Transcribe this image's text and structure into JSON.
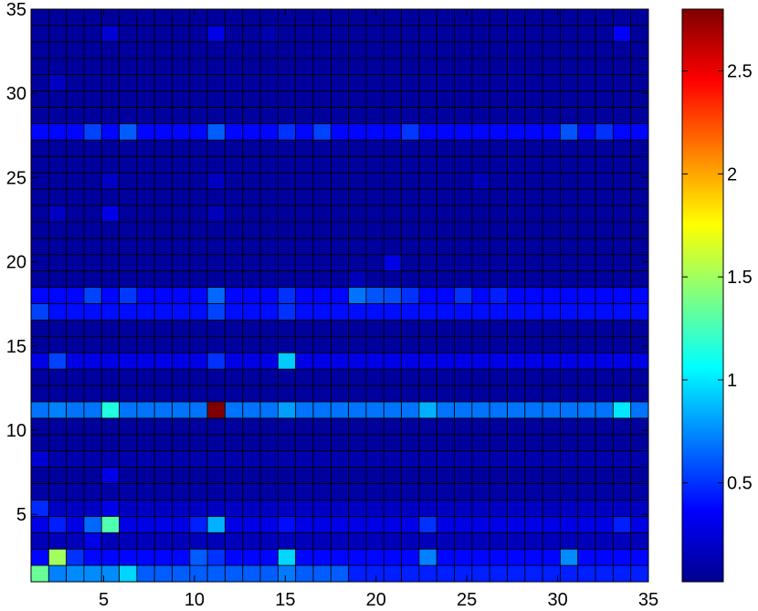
{
  "chart_data": {
    "type": "heatmap",
    "title": "",
    "xlabel": "",
    "ylabel": "",
    "xlim": [
      1,
      35
    ],
    "ylim": [
      1,
      35
    ],
    "x_ticks": [
      5,
      10,
      15,
      20,
      25,
      30,
      35
    ],
    "y_ticks": [
      5,
      10,
      15,
      20,
      25,
      30,
      35
    ],
    "x_tick_labels": [
      "5",
      "10",
      "15",
      "20",
      "25",
      "30",
      "35"
    ],
    "y_tick_labels": [
      "5",
      "10",
      "15",
      "20",
      "25",
      "30",
      "35"
    ],
    "grid": false,
    "colormap": "jet",
    "colorbar": {
      "placement": "right",
      "range": [
        0.02,
        2.8
      ],
      "ticks": [
        0.5,
        1,
        1.5,
        2,
        2.5
      ],
      "tick_labels": [
        "0.5",
        "1",
        "1.5",
        "2",
        "2.5"
      ]
    },
    "default_value": 0.1,
    "row_values": {
      "1": 0.45,
      "2": 0.38,
      "3": 0.18,
      "4": 0.3,
      "5": 0.2,
      "6": 0.12,
      "8": 0.14,
      "11": 0.68,
      "14": 0.3,
      "17": 0.4,
      "18": 0.38,
      "28": 0.38
    },
    "cells": [
      {
        "x": 1,
        "y": 1,
        "value": 1.35
      },
      {
        "x": 2,
        "y": 1,
        "value": 0.72
      },
      {
        "x": 3,
        "y": 1,
        "value": 0.75
      },
      {
        "x": 4,
        "y": 1,
        "value": 0.75
      },
      {
        "x": 5,
        "y": 1,
        "value": 0.75
      },
      {
        "x": 6,
        "y": 1,
        "value": 0.95
      },
      {
        "x": 7,
        "y": 1,
        "value": 0.62
      },
      {
        "x": 8,
        "y": 1,
        "value": 0.62
      },
      {
        "x": 9,
        "y": 1,
        "value": 0.62
      },
      {
        "x": 10,
        "y": 1,
        "value": 0.62
      },
      {
        "x": 11,
        "y": 1,
        "value": 0.62
      },
      {
        "x": 12,
        "y": 1,
        "value": 0.62
      },
      {
        "x": 13,
        "y": 1,
        "value": 0.62
      },
      {
        "x": 14,
        "y": 1,
        "value": 0.62
      },
      {
        "x": 15,
        "y": 1,
        "value": 0.7
      },
      {
        "x": 16,
        "y": 1,
        "value": 0.62
      },
      {
        "x": 17,
        "y": 1,
        "value": 0.62
      },
      {
        "x": 18,
        "y": 1,
        "value": 0.62
      },
      {
        "x": 2,
        "y": 2,
        "value": 1.5
      },
      {
        "x": 3,
        "y": 2,
        "value": 0.5
      },
      {
        "x": 10,
        "y": 2,
        "value": 0.62
      },
      {
        "x": 11,
        "y": 2,
        "value": 0.5
      },
      {
        "x": 15,
        "y": 2,
        "value": 0.95
      },
      {
        "x": 23,
        "y": 2,
        "value": 0.72
      },
      {
        "x": 31,
        "y": 2,
        "value": 0.75
      },
      {
        "x": 4,
        "y": 3,
        "value": 0.3
      },
      {
        "x": 2,
        "y": 4,
        "value": 0.45
      },
      {
        "x": 4,
        "y": 4,
        "value": 0.65
      },
      {
        "x": 5,
        "y": 4,
        "value": 1.28
      },
      {
        "x": 10,
        "y": 4,
        "value": 0.45
      },
      {
        "x": 11,
        "y": 4,
        "value": 0.85
      },
      {
        "x": 15,
        "y": 4,
        "value": 0.4
      },
      {
        "x": 20,
        "y": 4,
        "value": 0.3
      },
      {
        "x": 23,
        "y": 4,
        "value": 0.5
      },
      {
        "x": 34,
        "y": 4,
        "value": 0.45
      },
      {
        "x": 1,
        "y": 5,
        "value": 0.48
      },
      {
        "x": 5,
        "y": 5,
        "value": 0.3
      },
      {
        "x": 6,
        "y": 5,
        "value": 0.2
      },
      {
        "x": 30,
        "y": 5,
        "value": 0.18
      },
      {
        "x": 5,
        "y": 7,
        "value": 0.3
      },
      {
        "x": 1,
        "y": 8,
        "value": 0.25
      },
      {
        "x": 2,
        "y": 11,
        "value": 0.72
      },
      {
        "x": 5,
        "y": 11,
        "value": 1.15
      },
      {
        "x": 11,
        "y": 11,
        "value": 2.8
      },
      {
        "x": 15,
        "y": 11,
        "value": 0.8
      },
      {
        "x": 23,
        "y": 11,
        "value": 0.85
      },
      {
        "x": 34,
        "y": 11,
        "value": 1.0
      },
      {
        "x": 2,
        "y": 14,
        "value": 0.55
      },
      {
        "x": 11,
        "y": 14,
        "value": 0.5
      },
      {
        "x": 15,
        "y": 14,
        "value": 0.92
      },
      {
        "x": 1,
        "y": 17,
        "value": 0.55
      },
      {
        "x": 11,
        "y": 17,
        "value": 0.55
      },
      {
        "x": 15,
        "y": 17,
        "value": 0.5
      },
      {
        "x": 4,
        "y": 18,
        "value": 0.55
      },
      {
        "x": 6,
        "y": 18,
        "value": 0.52
      },
      {
        "x": 11,
        "y": 18,
        "value": 0.65
      },
      {
        "x": 15,
        "y": 18,
        "value": 0.5
      },
      {
        "x": 19,
        "y": 18,
        "value": 0.68
      },
      {
        "x": 20,
        "y": 18,
        "value": 0.6
      },
      {
        "x": 21,
        "y": 18,
        "value": 0.58
      },
      {
        "x": 22,
        "y": 18,
        "value": 0.5
      },
      {
        "x": 25,
        "y": 18,
        "value": 0.5
      },
      {
        "x": 27,
        "y": 18,
        "value": 0.45
      },
      {
        "x": 19,
        "y": 19,
        "value": 0.18
      },
      {
        "x": 21,
        "y": 20,
        "value": 0.3
      },
      {
        "x": 2,
        "y": 23,
        "value": 0.2
      },
      {
        "x": 5,
        "y": 23,
        "value": 0.3
      },
      {
        "x": 11,
        "y": 23,
        "value": 0.18
      },
      {
        "x": 5,
        "y": 25,
        "value": 0.2
      },
      {
        "x": 11,
        "y": 25,
        "value": 0.2
      },
      {
        "x": 26,
        "y": 25,
        "value": 0.18
      },
      {
        "x": 4,
        "y": 28,
        "value": 0.55
      },
      {
        "x": 6,
        "y": 28,
        "value": 0.62
      },
      {
        "x": 11,
        "y": 28,
        "value": 0.62
      },
      {
        "x": 15,
        "y": 28,
        "value": 0.5
      },
      {
        "x": 17,
        "y": 28,
        "value": 0.55
      },
      {
        "x": 22,
        "y": 28,
        "value": 0.52
      },
      {
        "x": 31,
        "y": 28,
        "value": 0.6
      },
      {
        "x": 33,
        "y": 28,
        "value": 0.5
      },
      {
        "x": 2,
        "y": 31,
        "value": 0.2
      },
      {
        "x": 5,
        "y": 34,
        "value": 0.25
      },
      {
        "x": 11,
        "y": 34,
        "value": 0.3
      },
      {
        "x": 14,
        "y": 34,
        "value": 0.15
      },
      {
        "x": 34,
        "y": 34,
        "value": 0.35
      }
    ]
  }
}
